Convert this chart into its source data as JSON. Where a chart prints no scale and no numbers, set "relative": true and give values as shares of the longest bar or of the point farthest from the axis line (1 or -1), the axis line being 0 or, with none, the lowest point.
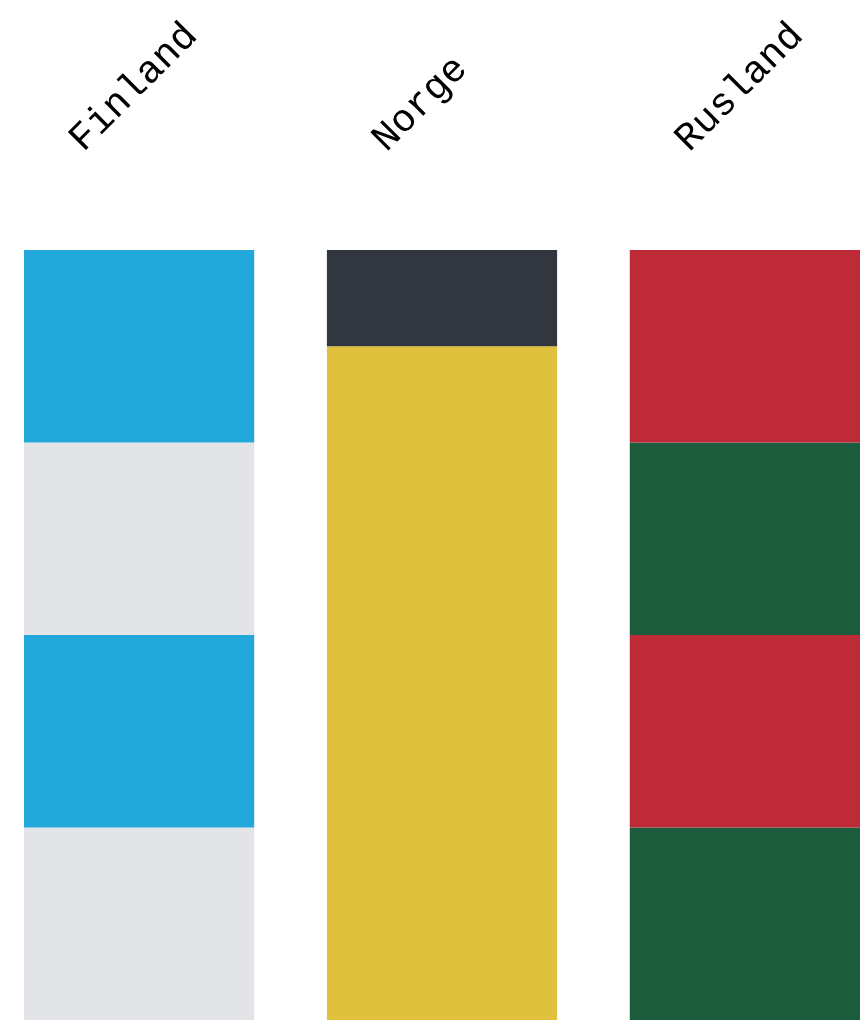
{
  "chart_data": {
    "type": "bar",
    "stacked": true,
    "relative": true,
    "categories": [
      "Finland",
      "Norge",
      "Rusland"
    ],
    "series": [
      {
        "colors": [
          "#e3e4e8",
          "#dfc13d",
          "#1a5c3c"
        ],
        "values": [
          0.25,
          0.875,
          0.25
        ]
      },
      {
        "colors": [
          "#22a7db",
          "#32363f",
          "#be2a38"
        ],
        "values": [
          0.25,
          0.125,
          0.25
        ]
      },
      {
        "colors": [
          "#e3e4e8",
          null,
          "#1a5c3c"
        ],
        "values": [
          0.25,
          null,
          0.25
        ]
      },
      {
        "colors": [
          "#22a7db",
          null,
          "#be2a38"
        ],
        "values": [
          0.25,
          null,
          0.25
        ]
      }
    ]
  }
}
